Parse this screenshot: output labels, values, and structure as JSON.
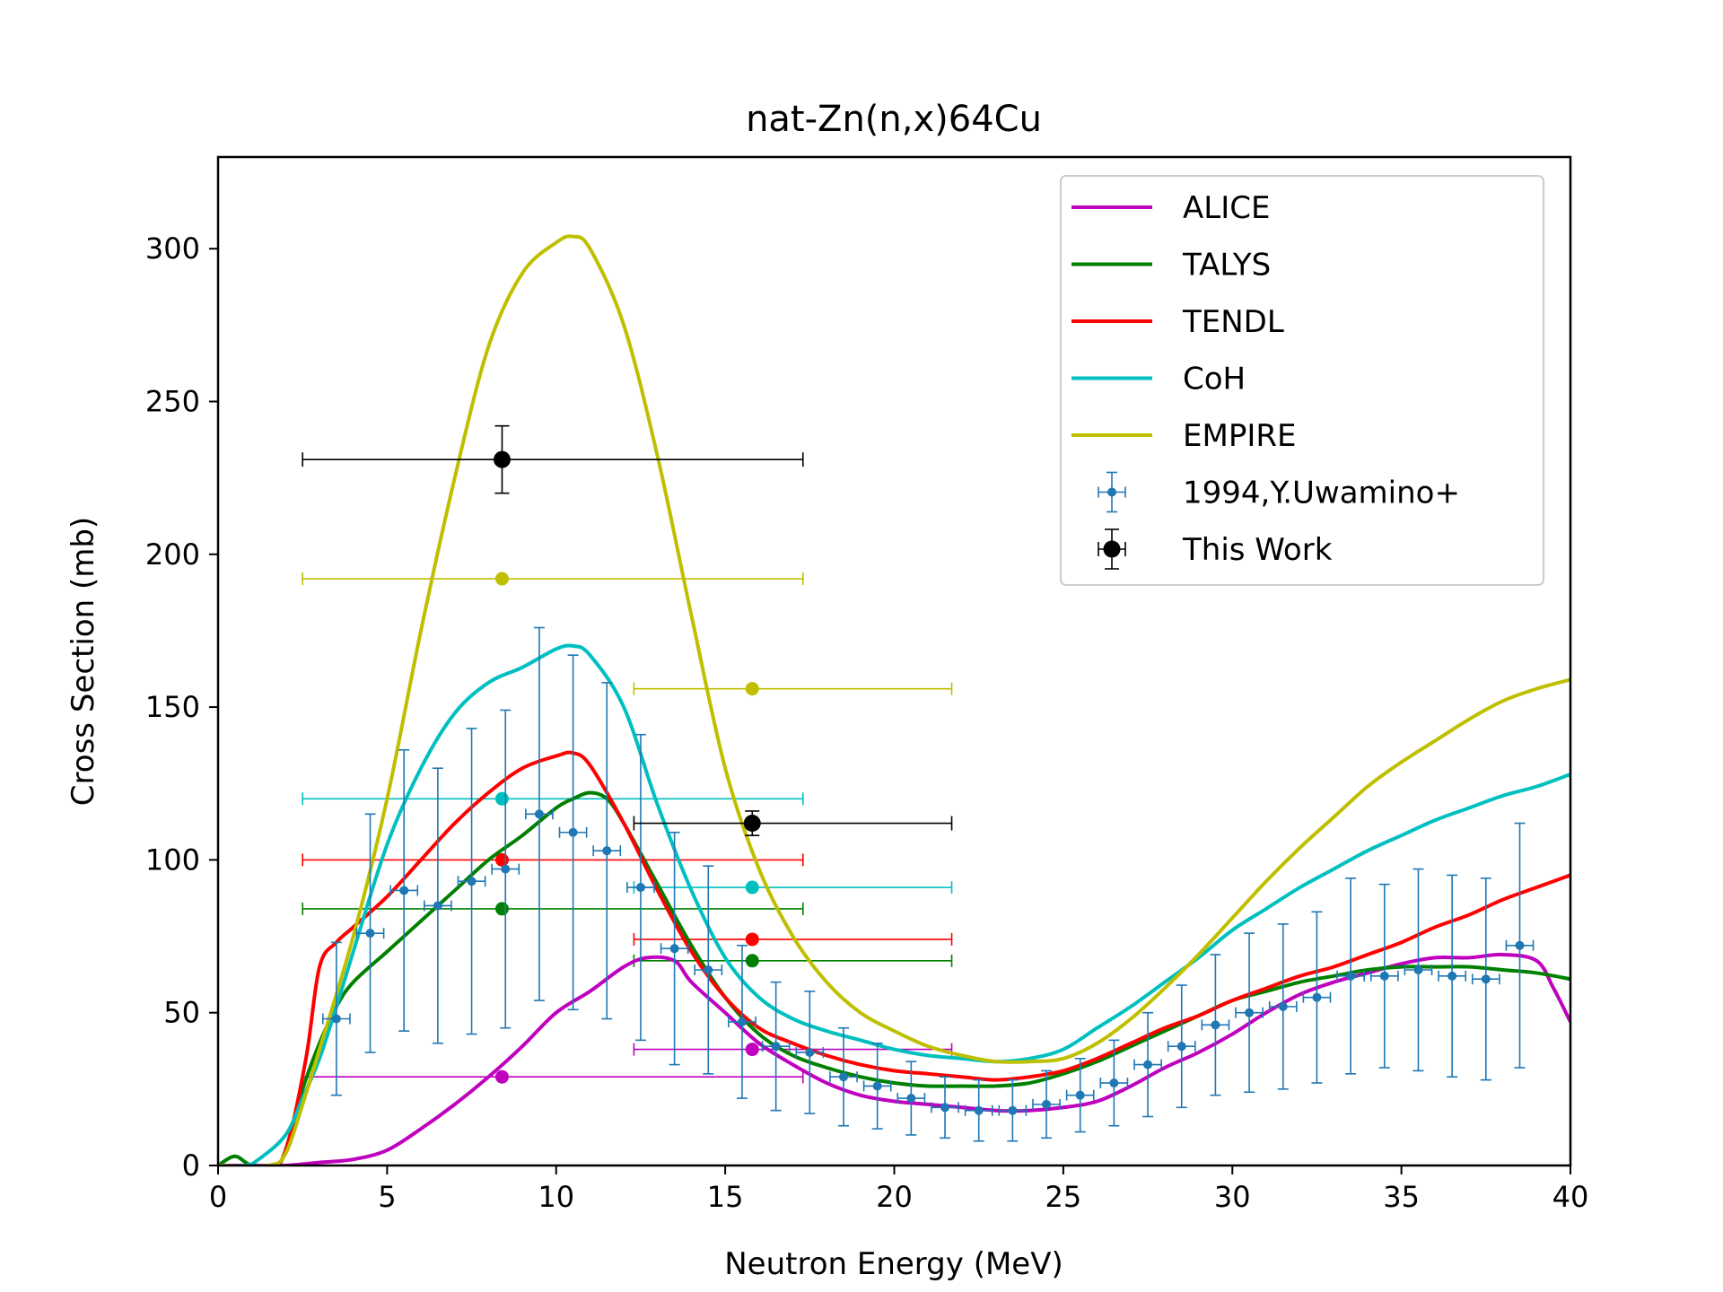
{
  "chart_data": {
    "type": "line",
    "title": "nat-Zn(n,x)64Cu",
    "xlabel": "Neutron Energy (MeV)",
    "ylabel": "Cross Section (mb)",
    "xlim": [
      0,
      40
    ],
    "ylim": [
      0,
      330
    ],
    "xticks": [
      0,
      5,
      10,
      15,
      20,
      25,
      30,
      35,
      40
    ],
    "yticks": [
      0,
      50,
      100,
      150,
      200,
      250,
      300
    ],
    "grid": false,
    "legend_position": "top-right",
    "series": [
      {
        "name": "ALICE",
        "kind": "curve",
        "color": "#bf00bf",
        "x": [
          0,
          1,
          2,
          3,
          4,
          5,
          6,
          7,
          8,
          9,
          10,
          11,
          12,
          12.7,
          13.5,
          14,
          15,
          16,
          17,
          18,
          19,
          20,
          21,
          22,
          23,
          24,
          25,
          26,
          27,
          28,
          29,
          30,
          31,
          32,
          33,
          34,
          35,
          36,
          37,
          38,
          39,
          39.5,
          40
        ],
        "y": [
          0,
          0,
          0,
          1,
          2,
          5,
          12,
          20,
          29,
          39,
          50,
          57,
          65,
          68,
          67,
          60,
          50,
          40,
          33,
          27,
          23,
          21,
          20,
          19,
          18,
          18,
          19,
          21,
          26,
          32,
          37,
          43,
          50,
          56,
          60,
          63,
          66,
          68,
          68,
          69,
          67,
          58,
          47
        ]
      },
      {
        "name": "TALYS",
        "kind": "curve",
        "color": "#008000",
        "x": [
          0,
          0.5,
          1.0,
          1.8,
          2.5,
          3,
          3.5,
          4,
          5,
          6,
          7,
          8,
          9,
          10,
          10.5,
          11,
          11.5,
          12,
          13,
          14,
          15,
          16,
          17,
          18,
          19,
          20,
          21,
          22,
          23,
          24,
          25,
          26,
          27,
          28,
          29,
          30,
          31,
          32,
          33,
          34,
          35,
          36,
          37,
          38,
          39,
          40
        ],
        "y": [
          0,
          3,
          0,
          0,
          25,
          40,
          52,
          60,
          70,
          80,
          90,
          100,
          108,
          117,
          120,
          122,
          120,
          112,
          92,
          72,
          55,
          43,
          36,
          32,
          29,
          27,
          26,
          26,
          26,
          27,
          30,
          34,
          39,
          44,
          49,
          54,
          57,
          60,
          62,
          64,
          65,
          65,
          65,
          64,
          63,
          61
        ]
      },
      {
        "name": "TENDL",
        "kind": "curve",
        "color": "#ff0000",
        "x": [
          0,
          1.5,
          2.0,
          2.6,
          3.0,
          3.5,
          4,
          5,
          6,
          7,
          8,
          9,
          10,
          10.5,
          11,
          12,
          13,
          14,
          15,
          16,
          17,
          18,
          19,
          20,
          21,
          22,
          23,
          24,
          25,
          26,
          27,
          28,
          29,
          30,
          31,
          32,
          33,
          34,
          35,
          36,
          37,
          38,
          39,
          40
        ],
        "y": [
          0,
          0,
          5,
          35,
          65,
          73,
          78,
          88,
          100,
          112,
          122,
          130,
          134,
          135,
          131,
          112,
          90,
          70,
          55,
          45,
          40,
          36,
          33,
          31,
          30,
          29,
          28,
          29,
          31,
          35,
          40,
          45,
          49,
          54,
          58,
          62,
          65,
          69,
          73,
          78,
          82,
          87,
          91,
          95
        ]
      },
      {
        "name": "CoH",
        "kind": "curve",
        "color": "#00bfbf",
        "x": [
          0,
          0.8,
          1.2,
          2.0,
          2.5,
          3,
          3.5,
          4,
          5,
          6,
          7,
          8,
          9,
          10,
          10.5,
          11,
          12,
          13,
          14,
          15,
          16,
          17,
          18,
          19,
          20,
          21,
          22,
          23,
          24,
          25,
          26,
          27,
          28,
          29,
          30,
          31,
          32,
          33,
          34,
          35,
          36,
          37,
          38,
          39,
          40
        ],
        "y": [
          0,
          0,
          2,
          10,
          22,
          35,
          52,
          70,
          105,
          130,
          148,
          158,
          163,
          169,
          170,
          167,
          150,
          118,
          90,
          68,
          55,
          48,
          44,
          41,
          38,
          36,
          35,
          34,
          35,
          38,
          45,
          52,
          60,
          68,
          77,
          84,
          91,
          97,
          103,
          108,
          113,
          117,
          121,
          124,
          128
        ]
      },
      {
        "name": "EMPIRE",
        "kind": "curve",
        "color": "#bfbf00",
        "x": [
          0,
          1.5,
          2.0,
          2.5,
          3,
          4,
          5,
          6,
          7,
          8,
          9,
          10,
          10.5,
          11,
          12,
          13,
          14,
          15,
          16,
          17,
          18,
          19,
          20,
          21,
          22,
          23,
          24,
          25,
          26,
          27,
          28,
          29,
          30,
          31,
          32,
          33,
          34,
          35,
          36,
          37,
          38,
          39,
          40
        ],
        "y": [
          0,
          0,
          4,
          20,
          38,
          75,
          120,
          175,
          225,
          268,
          292,
          302,
          304,
          300,
          275,
          232,
          180,
          130,
          97,
          75,
          60,
          50,
          44,
          39,
          36,
          34,
          34,
          35,
          40,
          48,
          58,
          69,
          81,
          93,
          104,
          114,
          124,
          132,
          139,
          146,
          152,
          156,
          159
        ]
      },
      {
        "name": "1994,Y.Uwamino+",
        "kind": "errorbar",
        "color": "#1f77b4",
        "x": [
          3.5,
          4.5,
          5.5,
          6.5,
          7.5,
          8.5,
          9.5,
          10.5,
          11.5,
          12.5,
          13.5,
          14.5,
          15.5,
          16.5,
          17.5,
          18.5,
          19.5,
          20.5,
          21.5,
          22.5,
          23.5,
          24.5,
          25.5,
          26.5,
          27.5,
          28.5,
          29.5,
          30.5,
          31.5,
          32.5,
          33.5,
          34.5,
          35.5,
          36.5,
          37.5,
          38.5
        ],
        "y": [
          48,
          76,
          90,
          85,
          93,
          97,
          115,
          109,
          103,
          91,
          71,
          64,
          47,
          39,
          37,
          29,
          26,
          22,
          19,
          18,
          18,
          20,
          23,
          27,
          33,
          39,
          46,
          50,
          52,
          55,
          62,
          62,
          64,
          62,
          61,
          72
        ],
        "yerr": [
          25,
          39,
          46,
          45,
          50,
          52,
          61,
          58,
          55,
          50,
          38,
          34,
          25,
          21,
          20,
          16,
          14,
          12,
          10,
          10,
          10,
          11,
          12,
          14,
          17,
          20,
          23,
          26,
          27,
          28,
          32,
          30,
          33,
          33,
          33,
          40
        ],
        "xerr": 0.4
      },
      {
        "name": "This Work",
        "kind": "errorbar",
        "color": "#000000",
        "x": [
          8.4,
          15.8
        ],
        "y": [
          231,
          112
        ],
        "yerr": [
          11,
          4
        ],
        "xerr_low": [
          5.9,
          3.5
        ],
        "xerr_high": [
          8.9,
          5.9
        ]
      }
    ],
    "model_averages": [
      {
        "model": "ALICE",
        "color": "#bf00bf",
        "x": [
          8.4,
          15.8
        ],
        "y": [
          29,
          38
        ]
      },
      {
        "model": "TALYS",
        "color": "#008000",
        "x": [
          8.4,
          15.8
        ],
        "y": [
          84,
          67
        ]
      },
      {
        "model": "TENDL",
        "color": "#ff0000",
        "x": [
          8.4,
          15.8
        ],
        "y": [
          100,
          74
        ]
      },
      {
        "model": "CoH",
        "color": "#00bfbf",
        "x": [
          8.4,
          15.8
        ],
        "y": [
          120,
          91
        ]
      },
      {
        "model": "EMPIRE",
        "color": "#bfbf00",
        "x": [
          8.4,
          15.8
        ],
        "y": [
          192,
          156
        ]
      }
    ]
  }
}
